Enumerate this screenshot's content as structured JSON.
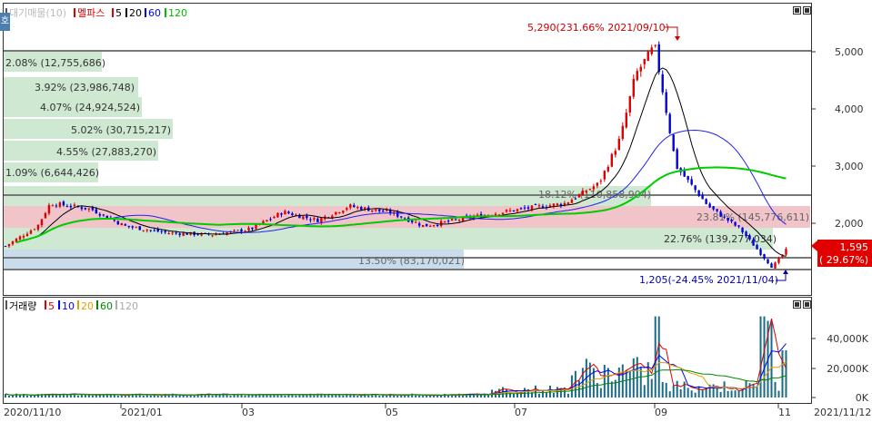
{
  "price_pane": {
    "legend": [
      {
        "text": "대기매물(10)",
        "color": "#bbbbbb",
        "name": "legend-volume-profile"
      },
      {
        "text": "멜파스",
        "color": "#e00000",
        "name": "legend-stock-name"
      },
      {
        "text": "5",
        "color": "#000000",
        "name": "legend-ma5"
      },
      {
        "text": "20",
        "color": "#000000",
        "name": "legend-ma20"
      },
      {
        "text": "60",
        "color": "#0000ff",
        "name": "legend-ma60"
      },
      {
        "text": "120",
        "color": "#00bb00",
        "name": "legend-ma120"
      }
    ],
    "side_tab": "호",
    "volume_profile": [
      {
        "label": "2.08% (12,755,686)",
        "pct": 2.08,
        "volume": 12755686
      },
      {
        "label": "3.92% (23,986,748)",
        "pct": 3.92,
        "volume": 23986748
      },
      {
        "label": "4.07% (24,924,524)",
        "pct": 4.07,
        "volume": 24924524
      },
      {
        "label": "5.02% (30,715,217)",
        "pct": 5.02,
        "volume": 30715217
      },
      {
        "label": "4.55% (27,883,270)",
        "pct": 4.55,
        "volume": 27883270
      },
      {
        "label": "1.09% (6,644,426)",
        "pct": 1.09,
        "volume": 6644426
      },
      {
        "label": "18.12% (110,858,904)",
        "pct": 18.12,
        "volume": 110858904
      },
      {
        "label": "23.81% (145,776,611)",
        "pct": 23.81,
        "volume": 145776611
      },
      {
        "label": "22.76% (139,277,034)",
        "pct": 22.76,
        "volume": 139277034
      },
      {
        "label": "13.50% (83,170,021)",
        "pct": 13.5,
        "volume": 83170021
      }
    ],
    "high_annotation": "5,290(231.66% 2021/09/10)",
    "low_annotation": "1,205(-24.45% 2021/11/04)",
    "y_ticks": [
      "5,000",
      "4,000",
      "3,000",
      "2,000"
    ],
    "current_price": "1,595",
    "current_change": "( 29.67%)"
  },
  "volume_pane": {
    "legend": [
      {
        "text": "거래량",
        "color": "#000000",
        "name": "legend-volume"
      },
      {
        "text": "5",
        "color": "#e00000",
        "name": "legend-vma5"
      },
      {
        "text": "10",
        "color": "#0000ff",
        "name": "legend-vma10"
      },
      {
        "text": "20",
        "color": "#e0a000",
        "name": "legend-vma20"
      },
      {
        "text": "60",
        "color": "#008800",
        "name": "legend-vma60"
      },
      {
        "text": "120",
        "color": "#aaaaaa",
        "name": "legend-vma120"
      }
    ],
    "y_ticks": [
      "40,000K",
      "20,000K",
      "0K"
    ]
  },
  "x_axis": {
    "labels": [
      "2020/11/10",
      "2021/01",
      "03",
      "05",
      "07",
      "09",
      "11",
      "2021/11/12"
    ]
  },
  "colors": {
    "up": "#e00000",
    "down": "#0000dd",
    "profile_green": "#cfe8d2",
    "profile_red": "#f0c4c8",
    "profile_blue": "#c9dcec",
    "ma120": "#00cc00",
    "ma60": "#2222ee"
  },
  "chart_data": {
    "type": "candlestick",
    "title": "멜파스",
    "period": [
      "2020/11/10",
      "2021/11/12"
    ],
    "y_range": [
      1000,
      5300
    ],
    "highest": {
      "price": 5290,
      "change_pct": 231.66,
      "date": "2021/09/10"
    },
    "lowest": {
      "price": 1205,
      "change_pct": -24.45,
      "date": "2021/11/04"
    },
    "last": {
      "price": 1595,
      "change_pct": 29.67
    },
    "close_approx": [
      {
        "x": "2020/11/10",
        "y": 1600
      },
      {
        "x": "2020/11/25",
        "y": 1950
      },
      {
        "x": "2020/12/01",
        "y": 2350
      },
      {
        "x": "2020/12/20",
        "y": 2250
      },
      {
        "x": "2021/01/05",
        "y": 1950
      },
      {
        "x": "2021/01/25",
        "y": 1830
      },
      {
        "x": "2021/02/15",
        "y": 1800
      },
      {
        "x": "2021/03/05",
        "y": 1900
      },
      {
        "x": "2021/03/20",
        "y": 2200
      },
      {
        "x": "2021/04/05",
        "y": 2050
      },
      {
        "x": "2021/04/20",
        "y": 2300
      },
      {
        "x": "2021/05/10",
        "y": 2180
      },
      {
        "x": "2021/05/25",
        "y": 1950
      },
      {
        "x": "2021/06/15",
        "y": 2100
      },
      {
        "x": "2021/07/10",
        "y": 2250
      },
      {
        "x": "2021/07/30",
        "y": 2350
      },
      {
        "x": "2021/08/15",
        "y": 2700
      },
      {
        "x": "2021/08/25",
        "y": 3500
      },
      {
        "x": "2021/09/01",
        "y": 4600
      },
      {
        "x": "2021/09/10",
        "y": 5100
      },
      {
        "x": "2021/09/20",
        "y": 3000
      },
      {
        "x": "2021/10/05",
        "y": 2300
      },
      {
        "x": "2021/10/20",
        "y": 1900
      },
      {
        "x": "2021/11/04",
        "y": 1230
      },
      {
        "x": "2021/11/12",
        "y": 1595
      }
    ]
  }
}
